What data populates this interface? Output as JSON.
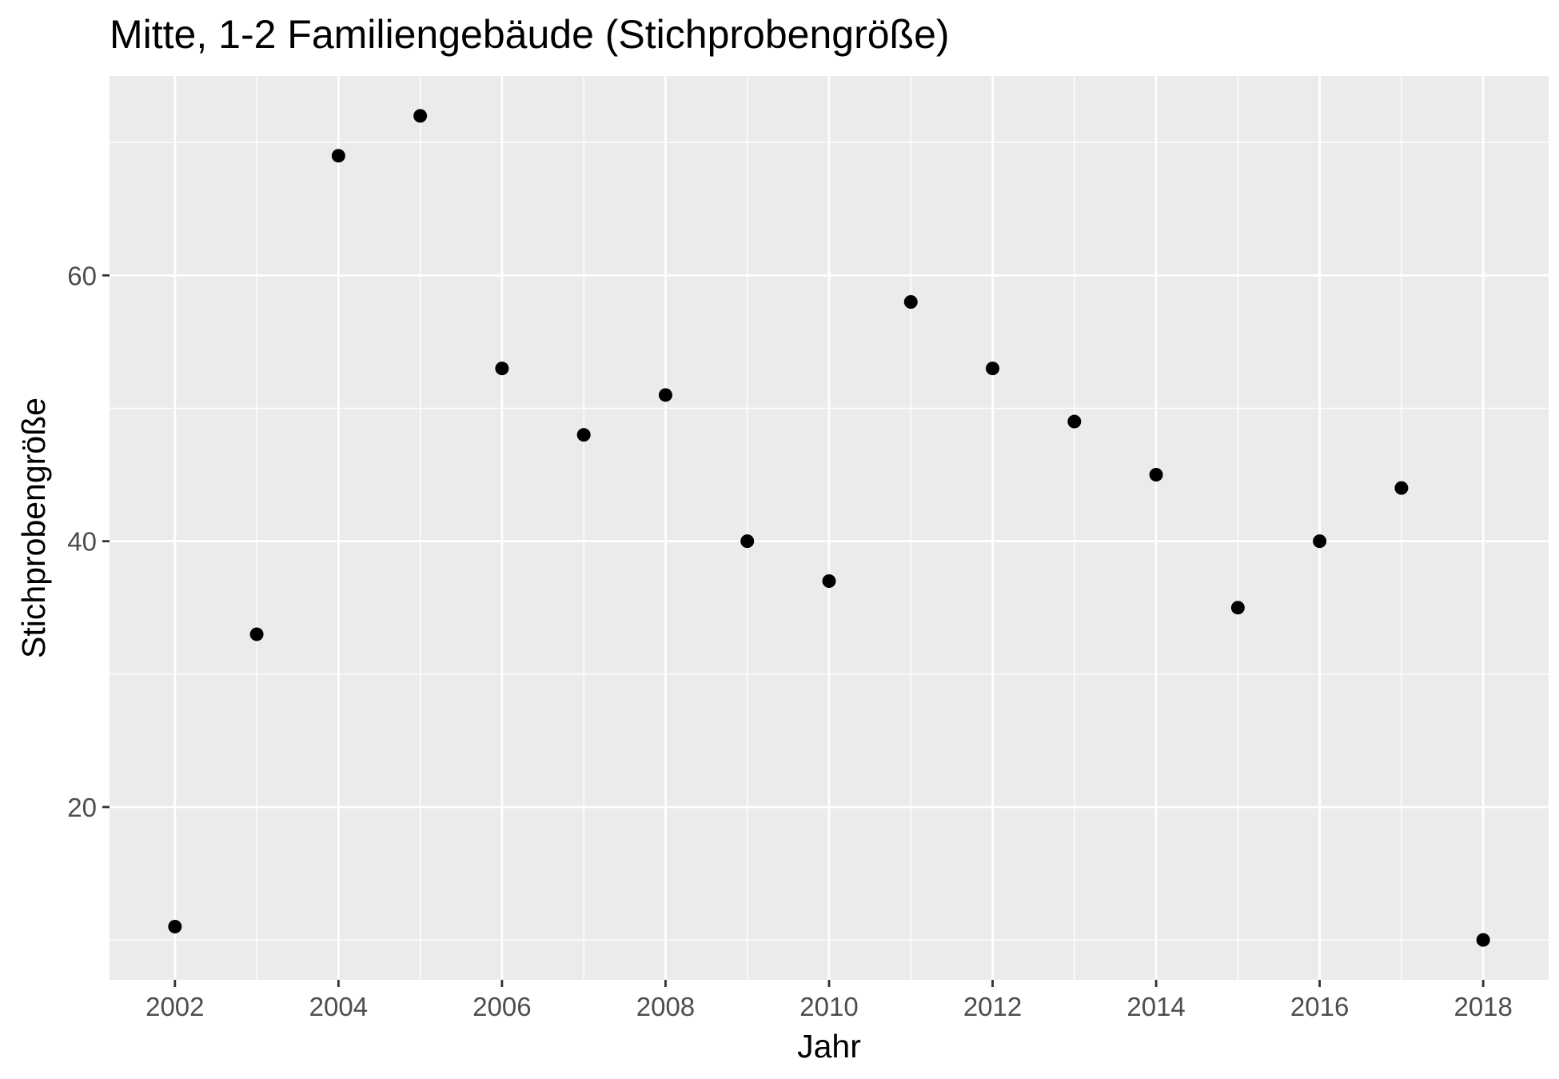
{
  "chart_data": {
    "type": "scatter",
    "title": "Mitte, 1-2 Familiengebäude (Stichprobengröße)",
    "xlabel": "Jahr",
    "ylabel": "Stichprobengröße",
    "x_ticks": [
      "2002",
      "2004",
      "2006",
      "2008",
      "2010",
      "2012",
      "2014",
      "2016",
      "2018"
    ],
    "y_ticks": [
      "20",
      "40",
      "60"
    ],
    "xlim": [
      2001.2,
      2018.8
    ],
    "ylim": [
      7,
      75
    ],
    "grid": true,
    "colors": {
      "panel": "#ebebeb",
      "grid": "#ffffff",
      "point": "#000000",
      "tick_text": "#4d4d4d"
    },
    "points": [
      {
        "x": 2002,
        "y": 11
      },
      {
        "x": 2003,
        "y": 33
      },
      {
        "x": 2004,
        "y": 69
      },
      {
        "x": 2005,
        "y": 72
      },
      {
        "x": 2006,
        "y": 53
      },
      {
        "x": 2007,
        "y": 48
      },
      {
        "x": 2008,
        "y": 51
      },
      {
        "x": 2009,
        "y": 40
      },
      {
        "x": 2010,
        "y": 37
      },
      {
        "x": 2011,
        "y": 58
      },
      {
        "x": 2012,
        "y": 53
      },
      {
        "x": 2013,
        "y": 49
      },
      {
        "x": 2014,
        "y": 45
      },
      {
        "x": 2015,
        "y": 35
      },
      {
        "x": 2016,
        "y": 40
      },
      {
        "x": 2017,
        "y": 44
      },
      {
        "x": 2018,
        "y": 10
      }
    ]
  }
}
